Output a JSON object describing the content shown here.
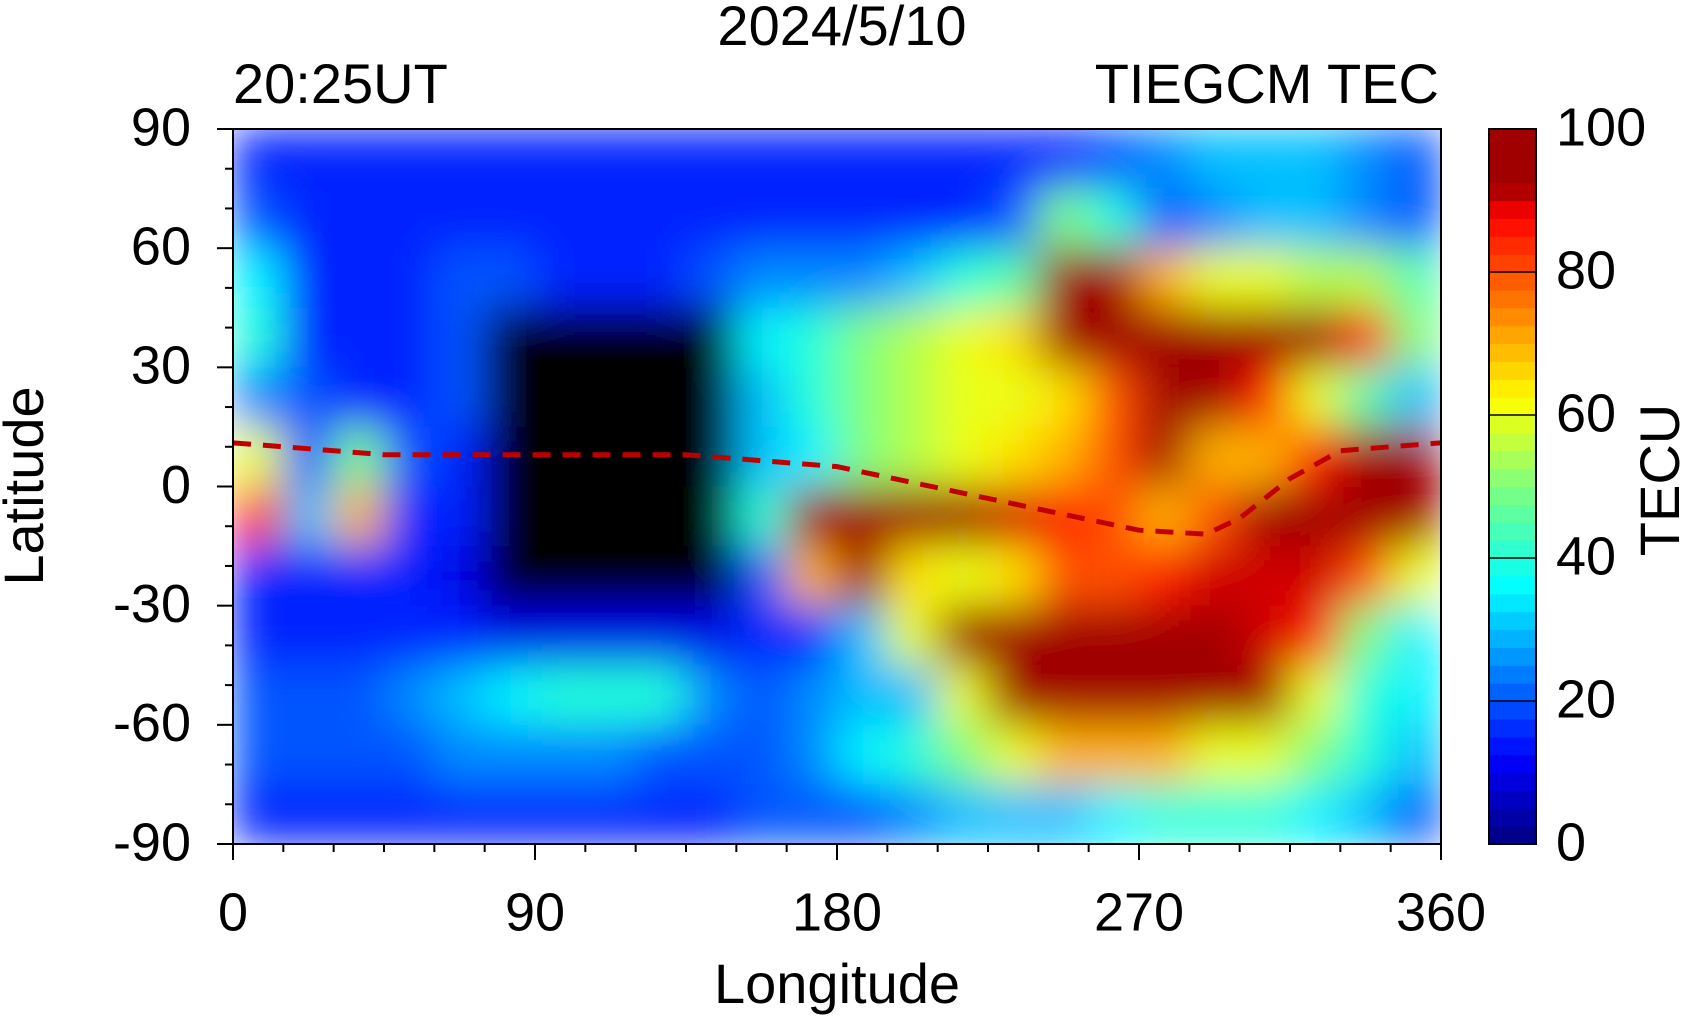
{
  "chart_data": {
    "type": "heatmap",
    "title": "2024/5/10",
    "subtitle_left": "20:25UT",
    "subtitle_right": "TIEGCM TEC",
    "x_label": "Longitude",
    "y_label": "Latitude",
    "colorbar_label": "TECU",
    "xlim": [
      0,
      360
    ],
    "xticks": [
      0,
      90,
      180,
      270,
      360
    ],
    "ylim": [
      -90,
      90
    ],
    "yticks": [
      90,
      60,
      30,
      0,
      -30,
      -60,
      -90
    ],
    "zlim": [
      0,
      100
    ],
    "zticks": [
      100,
      80,
      60,
      40,
      20,
      0
    ],
    "null_color": "#000000",
    "colorscale": [
      [
        0,
        "#00007f"
      ],
      [
        12,
        "#0000ff"
      ],
      [
        36,
        "#00ffff"
      ],
      [
        50,
        "#7fff7f"
      ],
      [
        62,
        "#ffff00"
      ],
      [
        75,
        "#ff8000"
      ],
      [
        88,
        "#ff0000"
      ],
      [
        92,
        "#a00000"
      ],
      [
        100,
        "#a00000"
      ]
    ],
    "x": [
      7.5,
      22.5,
      37.5,
      52.5,
      67.5,
      82.5,
      97.5,
      112.5,
      127.5,
      142.5,
      157.5,
      172.5,
      187.5,
      202.5,
      217.5,
      232.5,
      247.5,
      262.5,
      277.5,
      292.5,
      307.5,
      322.5,
      337.5,
      352.5
    ],
    "y": [
      82.5,
      67.5,
      52.5,
      37.5,
      22.5,
      7.5,
      -7.5,
      -22.5,
      -37.5,
      -52.5,
      -67.5,
      -82.5
    ],
    "z": [
      [
        15,
        15,
        15,
        15,
        15,
        15,
        15,
        15,
        15,
        15,
        15,
        15,
        15,
        15,
        15,
        15,
        15,
        20,
        25,
        30,
        30,
        30,
        25,
        20
      ],
      [
        20,
        15,
        15,
        15,
        15,
        15,
        15,
        15,
        15,
        15,
        15,
        15,
        15,
        15,
        15,
        20,
        50,
        40,
        20,
        25,
        30,
        30,
        25,
        20
      ],
      [
        35,
        15,
        15,
        15,
        20,
        20,
        15,
        15,
        15,
        20,
        25,
        25,
        25,
        30,
        40,
        45,
        95,
        95,
        70,
        60,
        60,
        55,
        55,
        45
      ],
      [
        40,
        15,
        15,
        15,
        20,
        null,
        null,
        null,
        null,
        null,
        35,
        40,
        50,
        55,
        60,
        65,
        100,
        100,
        100,
        100,
        100,
        95,
        85,
        50
      ],
      [
        25,
        20,
        15,
        15,
        20,
        null,
        null,
        null,
        null,
        null,
        30,
        40,
        50,
        55,
        60,
        60,
        65,
        80,
        100,
        100,
        85,
        60,
        45,
        30
      ],
      [
        60,
        20,
        50,
        20,
        15,
        null,
        null,
        null,
        null,
        null,
        30,
        35,
        50,
        55,
        60,
        65,
        70,
        80,
        95,
        70,
        70,
        85,
        95,
        95
      ],
      [
        85,
        30,
        70,
        15,
        15,
        null,
        null,
        null,
        null,
        null,
        40,
        100,
        100,
        100,
        95,
        90,
        85,
        80,
        70,
        80,
        100,
        100,
        100,
        100
      ],
      [
        15,
        15,
        15,
        15,
        10,
        null,
        null,
        null,
        null,
        null,
        20,
        70,
        95,
        65,
        60,
        65,
        80,
        80,
        85,
        90,
        90,
        90,
        80,
        60
      ],
      [
        15,
        15,
        15,
        15,
        15,
        10,
        10,
        10,
        10,
        10,
        15,
        15,
        30,
        60,
        100,
        100,
        100,
        100,
        100,
        100,
        90,
        85,
        50,
        35
      ],
      [
        20,
        20,
        20,
        25,
        30,
        35,
        40,
        40,
        40,
        25,
        20,
        25,
        30,
        30,
        60,
        100,
        100,
        100,
        100,
        100,
        95,
        60,
        40,
        35
      ],
      [
        20,
        20,
        20,
        20,
        25,
        25,
        25,
        25,
        20,
        20,
        20,
        25,
        35,
        40,
        50,
        60,
        70,
        70,
        70,
        60,
        60,
        50,
        40,
        30
      ],
      [
        15,
        15,
        15,
        15,
        15,
        15,
        15,
        15,
        15,
        15,
        20,
        20,
        20,
        25,
        30,
        30,
        30,
        35,
        40,
        40,
        40,
        35,
        30,
        20
      ]
    ],
    "series": [
      {
        "color": "#c00000",
        "dashed": true,
        "x": [
          0,
          45,
          90,
          135,
          180,
          225,
          270,
          290,
          300,
          315,
          330,
          360
        ],
        "values": [
          11,
          8,
          8,
          8,
          5,
          -3,
          -11,
          -12,
          -8,
          2,
          9,
          11
        ]
      }
    ]
  }
}
